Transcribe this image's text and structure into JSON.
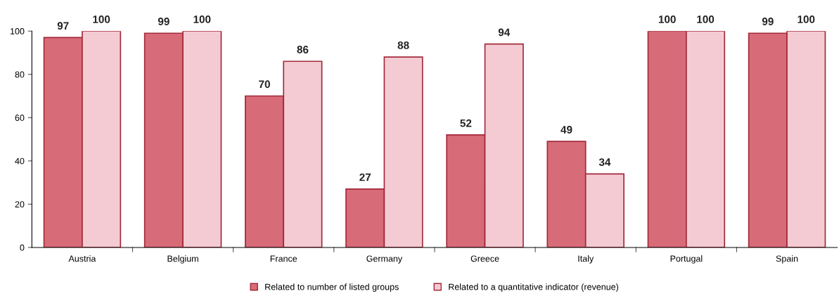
{
  "chart_data": {
    "type": "bar",
    "categories": [
      "Austria",
      "Belgium",
      "France",
      "Germany",
      "Greece",
      "Italy",
      "Portugal",
      "Spain"
    ],
    "series": [
      {
        "name": "Related to number of listed groups",
        "color": "#d86b78",
        "values": [
          97,
          99,
          70,
          27,
          52,
          49,
          100,
          99
        ]
      },
      {
        "name": "Related to a quantitative indicator (revenue)",
        "color": "#f4cbd3",
        "values": [
          100,
          100,
          86,
          88,
          94,
          34,
          100,
          100
        ]
      }
    ],
    "ylim": [
      0,
      100
    ],
    "yticks": [
      0,
      20,
      40,
      60,
      80,
      100
    ],
    "data_labels": true,
    "grid": false,
    "legend": "bottom"
  }
}
